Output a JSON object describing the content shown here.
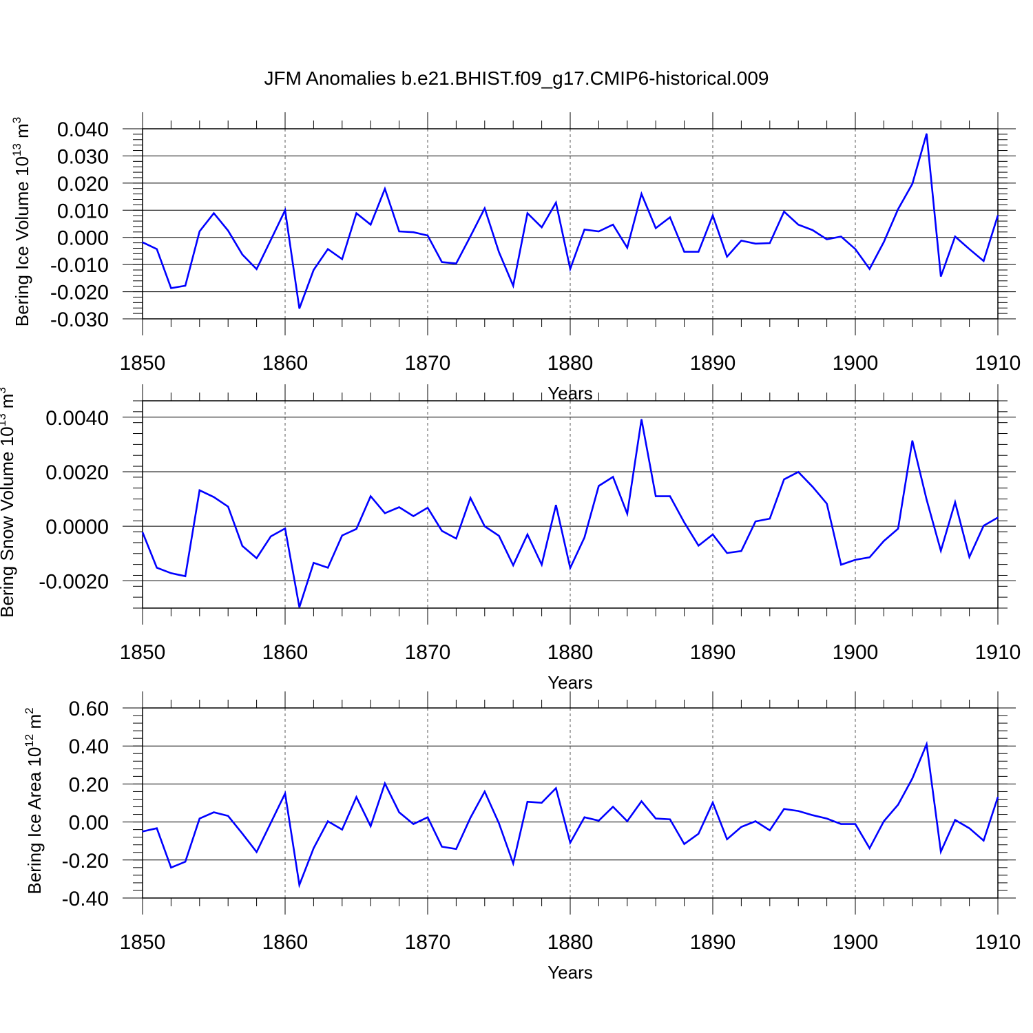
{
  "title": "JFM Anomalies b.e21.BHIST.f09_g17.CMIP6-historical.009",
  "chart_data": [
    {
      "type": "line",
      "title": "",
      "xlabel": "Years",
      "ylabel": "Bering Ice Volume 10",
      "ylabel_exp": "13",
      "ylabel_unit": " m",
      "ylabel_unit_exp": "3",
      "xlim": [
        1850,
        1910
      ],
      "ylim": [
        -0.03,
        0.04
      ],
      "xticks": [
        "1850",
        "1860",
        "1870",
        "1880",
        "1890",
        "1900",
        "1910"
      ],
      "yticks": [
        "0.040",
        "0.030",
        "0.020",
        "0.010",
        "0.000",
        "-0.010",
        "-0.020",
        "-0.030"
      ],
      "ytick_values": [
        0.04,
        0.03,
        0.02,
        0.01,
        0.0,
        -0.01,
        -0.02,
        -0.03
      ],
      "series": [
        {
          "name": "Bering Ice Volume",
          "color": "#0000ff",
          "x_start": 1850,
          "values": [
            -0.0018,
            -0.0043,
            -0.0187,
            -0.0178,
            0.0022,
            0.0089,
            0.0025,
            -0.0063,
            -0.0117,
            -0.0009,
            0.01,
            -0.0262,
            -0.012,
            -0.0043,
            -0.008,
            0.0089,
            0.0047,
            0.0179,
            0.0022,
            0.0019,
            0.0007,
            -0.0091,
            -0.0096,
            0.0004,
            0.0107,
            -0.0054,
            -0.0178,
            0.0089,
            0.0037,
            0.0128,
            -0.0116,
            0.0029,
            0.0022,
            0.0047,
            -0.0038,
            0.016,
            0.0034,
            0.0074,
            -0.0053,
            -0.0053,
            0.0081,
            -0.0071,
            -0.0012,
            -0.0023,
            -0.0021,
            0.0095,
            0.0047,
            0.0027,
            -0.0007,
            0.0003,
            -0.0043,
            -0.0116,
            -0.0017,
            0.0104,
            0.0197,
            0.0382,
            -0.0144,
            0.0003,
            -0.0043,
            -0.0087,
            0.0081
          ]
        }
      ]
    },
    {
      "type": "line",
      "title": "",
      "xlabel": "Years",
      "ylabel": "Bering Snow Volume 10",
      "ylabel_exp": "13",
      "ylabel_unit": " m",
      "ylabel_unit_exp": "3",
      "xlim": [
        1850,
        1910
      ],
      "ylim": [
        -0.003,
        0.0046
      ],
      "xticks": [
        "1850",
        "1860",
        "1870",
        "1880",
        "1890",
        "1900",
        "1910"
      ],
      "yticks": [
        "0.0040",
        "0.0020",
        "0.0000",
        "-0.0020"
      ],
      "ytick_values": [
        0.004,
        0.002,
        0.0,
        -0.002
      ],
      "series": [
        {
          "name": "Bering Snow Volume",
          "color": "#0000ff",
          "x_start": 1850,
          "values": [
            -0.00022,
            -0.00152,
            -0.00172,
            -0.00183,
            0.00132,
            0.00107,
            0.00072,
            -0.00072,
            -0.00117,
            -0.00037,
            -8e-05,
            -0.00297,
            -0.00134,
            -0.00152,
            -0.00034,
            -0.0001,
            0.0011,
            0.00048,
            0.0007,
            0.00037,
            0.00068,
            -0.00017,
            -0.00045,
            0.00104,
            0.0,
            -0.00035,
            -0.00143,
            -0.0003,
            -0.00141,
            0.00078,
            -0.00153,
            -0.00041,
            0.00148,
            0.00181,
            0.00046,
            0.00392,
            0.0011,
            0.0011,
            0.00014,
            -0.00071,
            -0.0003,
            -0.00098,
            -0.00091,
            0.00018,
            0.00028,
            0.00172,
            0.00199,
            0.00145,
            0.00083,
            -0.00141,
            -0.00123,
            -0.00114,
            -0.00054,
            -9e-05,
            0.00314,
            0.00098,
            -0.0009,
            0.00088,
            -0.00113,
            2e-05,
            0.00032
          ]
        }
      ]
    },
    {
      "type": "line",
      "title": "",
      "xlabel": "Years",
      "ylabel": "Bering Ice Area 10",
      "ylabel_exp": "12",
      "ylabel_unit": " m",
      "ylabel_unit_exp": "2",
      "xlim": [
        1850,
        1910
      ],
      "ylim": [
        -0.4,
        0.6
      ],
      "xticks": [
        "1850",
        "1860",
        "1870",
        "1880",
        "1890",
        "1900",
        "1910"
      ],
      "yticks": [
        "0.60",
        "0.40",
        "0.20",
        "0.00",
        "-0.20",
        "-0.40"
      ],
      "ytick_values": [
        0.6,
        0.4,
        0.2,
        0.0,
        -0.2,
        -0.4
      ],
      "series": [
        {
          "name": "Bering Ice Area",
          "color": "#0000ff",
          "x_start": 1850,
          "values": [
            -0.05,
            -0.033,
            -0.24,
            -0.209,
            0.018,
            0.051,
            0.032,
            -0.061,
            -0.158,
            -0.004,
            0.15,
            -0.331,
            -0.138,
            0.004,
            -0.04,
            0.131,
            -0.022,
            0.203,
            0.051,
            -0.011,
            0.025,
            -0.13,
            -0.142,
            0.022,
            0.16,
            -0.007,
            -0.218,
            0.106,
            0.101,
            0.178,
            -0.109,
            0.025,
            0.007,
            0.08,
            0.004,
            0.109,
            0.018,
            0.014,
            -0.116,
            -0.062,
            0.102,
            -0.091,
            -0.026,
            0.004,
            -0.044,
            0.069,
            0.058,
            0.036,
            0.018,
            -0.011,
            -0.011,
            -0.138,
            0.004,
            0.091,
            0.229,
            0.409,
            -0.156,
            0.011,
            -0.033,
            -0.098,
            0.131
          ]
        }
      ]
    }
  ]
}
